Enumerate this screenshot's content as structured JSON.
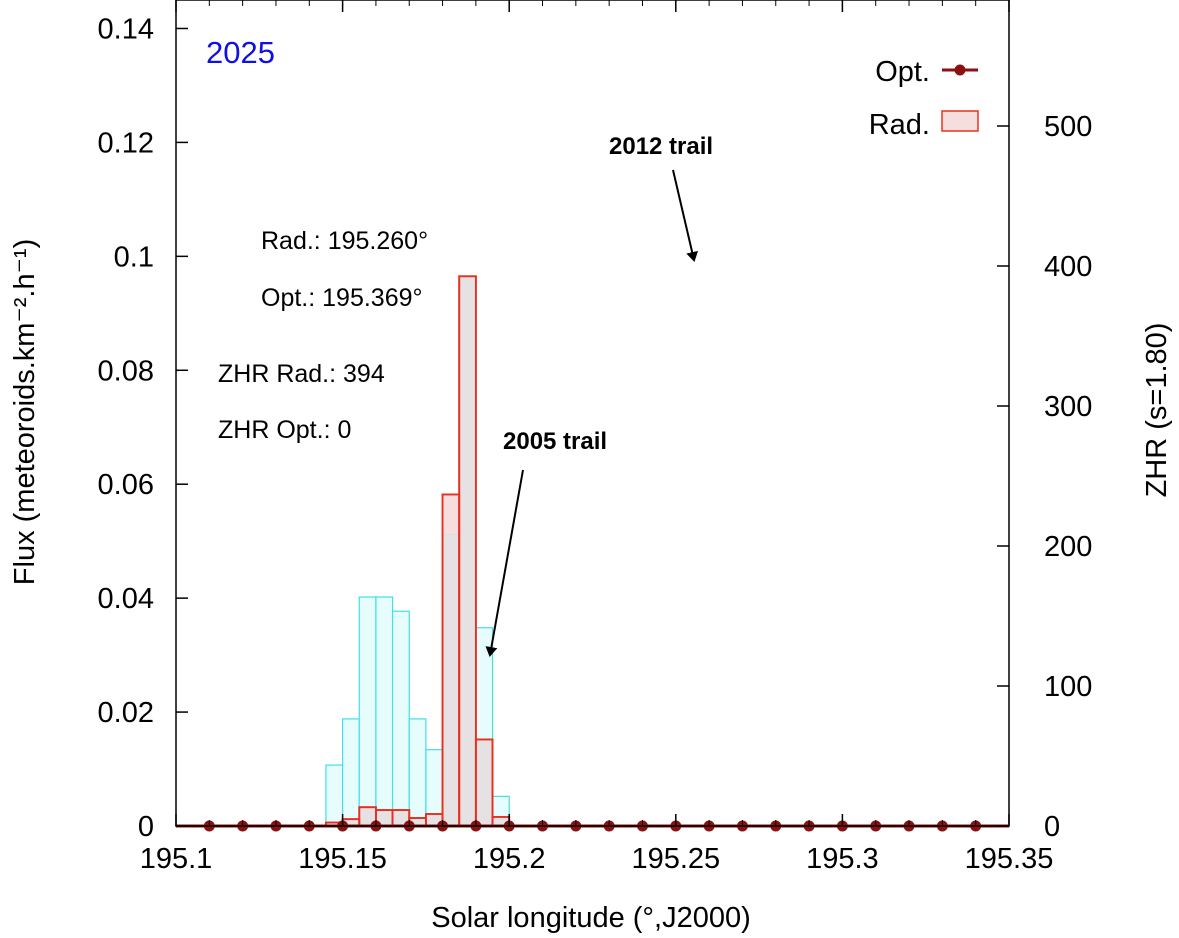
{
  "chart_data": {
    "type": "bar",
    "year_label": "2025",
    "year_color": "#1010e0",
    "xlabel": "Solar longitude (°,J2000)",
    "ylabel_left": "Flux (meteoroids.km⁻².h⁻¹)",
    "ylabel_right": "ZHR (s=1.80)",
    "xlim": [
      195.1,
      195.35
    ],
    "ylim_left": [
      0,
      0.145
    ],
    "ylim_right": [
      0,
      590
    ],
    "x_ticks": [
      "195.1",
      "195.15",
      "195.2",
      "195.25",
      "195.3",
      "195.35"
    ],
    "y_left_ticks": [
      "0",
      "0.02",
      "0.04",
      "0.06",
      "0.08",
      "0.1",
      "0.12",
      "0.14"
    ],
    "y_right_ticks": [
      "0",
      "100",
      "200",
      "300",
      "400",
      "500"
    ],
    "bin_width": 0.005,
    "background_series": {
      "name": "",
      "color": "#40e0e8",
      "bins": [
        {
          "x": 195.1475,
          "value": 0.0107
        },
        {
          "x": 195.1525,
          "value": 0.0188
        },
        {
          "x": 195.1575,
          "value": 0.0402
        },
        {
          "x": 195.1625,
          "value": 0.0402
        },
        {
          "x": 195.1675,
          "value": 0.0377
        },
        {
          "x": 195.1725,
          "value": 0.0188
        },
        {
          "x": 195.1775,
          "value": 0.0134
        },
        {
          "x": 195.1825,
          "value": 0.0512
        },
        {
          "x": 195.1875,
          "value": 0.0962
        },
        {
          "x": 195.1925,
          "value": 0.0348
        },
        {
          "x": 195.1975,
          "value": 0.0052
        }
      ]
    },
    "series": [
      {
        "name": "Rad.",
        "color": "#e83020",
        "fill": "#f6dede",
        "bins": [
          {
            "x": 195.1475,
            "value": 0.0006
          },
          {
            "x": 195.1525,
            "value": 0.0012
          },
          {
            "x": 195.1575,
            "value": 0.0033
          },
          {
            "x": 195.1625,
            "value": 0.0028
          },
          {
            "x": 195.1675,
            "value": 0.0028
          },
          {
            "x": 195.1725,
            "value": 0.0014
          },
          {
            "x": 195.1775,
            "value": 0.0021
          },
          {
            "x": 195.1825,
            "value": 0.0582
          },
          {
            "x": 195.1875,
            "value": 0.0965
          },
          {
            "x": 195.1925,
            "value": 0.0152
          },
          {
            "x": 195.1975,
            "value": 0.0016
          }
        ]
      },
      {
        "name": "Opt.",
        "color": "#8b1010",
        "x": [
          195.11,
          195.12,
          195.13,
          195.14,
          195.15,
          195.16,
          195.17,
          195.18,
          195.19,
          195.2,
          195.21,
          195.22,
          195.23,
          195.24,
          195.25,
          195.26,
          195.27,
          195.28,
          195.29,
          195.3,
          195.31,
          195.32,
          195.33,
          195.34
        ],
        "values": [
          0,
          0,
          0,
          0,
          0,
          0,
          0,
          0,
          0,
          0,
          0,
          0,
          0,
          0,
          0,
          0,
          0,
          0,
          0,
          0,
          0,
          0,
          0,
          0
        ]
      }
    ],
    "annotations": {
      "rad_peak": "Rad.: 195.260°",
      "opt_peak": "Opt.: 195.369°",
      "zhr_rad": "ZHR Rad.: 394",
      "zhr_opt": "ZHR Opt.: 0",
      "trail_2012": "2012 trail",
      "trail_2005": "2005 trail"
    },
    "legend": {
      "position": "top-right",
      "entries": [
        "Opt.",
        "Rad."
      ]
    }
  }
}
